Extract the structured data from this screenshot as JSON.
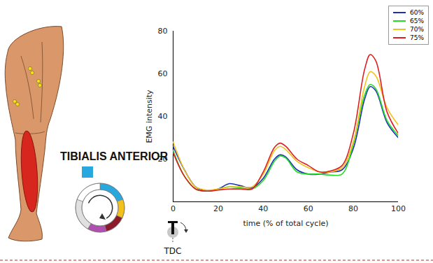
{
  "chart_data": {
    "type": "line",
    "title": "TIBIALIS ANTERIOR",
    "x_label": "time (% of total cycle)",
    "y_label": "EMG intensity",
    "annotations": [
      "TDC"
    ],
    "x": [
      0,
      5,
      10,
      15,
      20,
      25,
      30,
      35,
      40,
      45,
      47.5,
      50,
      55,
      60,
      65,
      70,
      75,
      80,
      85,
      87.5,
      90,
      95,
      100
    ],
    "series": [
      {
        "name": "60%",
        "color": "#1f2fb5",
        "values": [
          26,
          15,
          7,
          5,
          6,
          8.5,
          7.5,
          6.5,
          11,
          20,
          22,
          21,
          15,
          13,
          13,
          14,
          15,
          25,
          48,
          54,
          52,
          37,
          30
        ]
      },
      {
        "name": "65%",
        "color": "#22dd22",
        "values": [
          24,
          12,
          6,
          5,
          6,
          7,
          6.5,
          6,
          10,
          19,
          21.5,
          20.5,
          14,
          13,
          13,
          12.5,
          13,
          27,
          50,
          55,
          53,
          38,
          31
        ]
      },
      {
        "name": "70%",
        "color": "#f2c21a",
        "values": [
          28,
          15,
          7,
          5.5,
          6,
          7,
          7,
          7,
          13,
          24,
          26,
          24.5,
          19,
          16,
          14,
          14,
          16,
          28,
          54,
          61,
          59,
          44,
          36
        ]
      },
      {
        "name": "75%",
        "color": "#dd1f1f",
        "values": [
          23,
          12,
          6,
          5,
          5.5,
          6,
          6,
          6,
          14,
          25.5,
          27.5,
          26,
          20,
          17,
          14,
          14.5,
          17,
          32,
          62,
          69,
          66,
          42,
          32
        ]
      }
    ],
    "xlim": [
      0,
      100
    ],
    "xticks": [
      0,
      20,
      40,
      60,
      80,
      100
    ],
    "ylim": [
      0,
      80
    ],
    "yticks": [
      20,
      40,
      60,
      80
    ],
    "legend": "top-right",
    "grid": false
  }
}
